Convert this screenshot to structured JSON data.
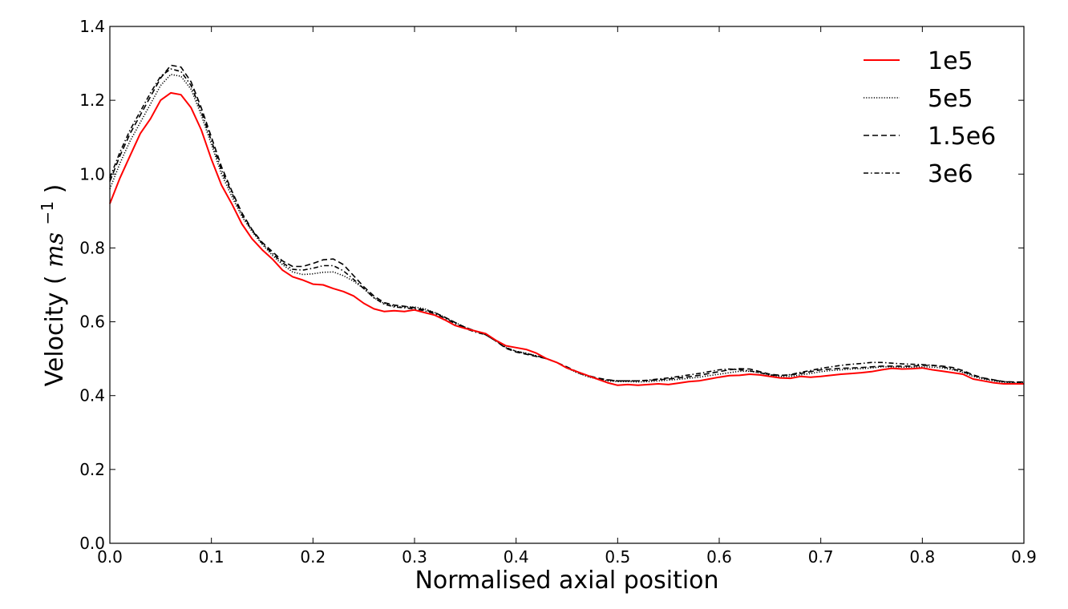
{
  "chart_data": {
    "type": "line",
    "title": "",
    "xlabel": "Normalised axial position",
    "ylabel": "Velocity",
    "ylabel_math": "ms",
    "ylabel_exp": "−1",
    "xlim": [
      0.0,
      0.9
    ],
    "ylim": [
      0.0,
      1.4
    ],
    "xticks": [
      0.0,
      0.1,
      0.2,
      0.3,
      0.4,
      0.5,
      0.6,
      0.7,
      0.8,
      0.9
    ],
    "xtick_labels": [
      "0.0",
      "0.1",
      "0.2",
      "0.3",
      "0.4",
      "0.5",
      "0.6",
      "0.7",
      "0.8",
      "0.9"
    ],
    "yticks": [
      0.0,
      0.2,
      0.4,
      0.6,
      0.8,
      1.0,
      1.2,
      1.4
    ],
    "ytick_labels": [
      "0.0",
      "0.2",
      "0.4",
      "0.6",
      "0.8",
      "1.0",
      "1.2",
      "1.4"
    ],
    "grid": false,
    "legend_position": "top-right",
    "x": [
      0.0,
      0.01,
      0.02,
      0.03,
      0.04,
      0.05,
      0.06,
      0.07,
      0.08,
      0.09,
      0.1,
      0.11,
      0.12,
      0.13,
      0.14,
      0.15,
      0.16,
      0.17,
      0.18,
      0.19,
      0.2,
      0.21,
      0.22,
      0.23,
      0.24,
      0.25,
      0.26,
      0.27,
      0.28,
      0.29,
      0.3,
      0.31,
      0.32,
      0.33,
      0.34,
      0.35,
      0.36,
      0.37,
      0.38,
      0.39,
      0.4,
      0.41,
      0.42,
      0.43,
      0.44,
      0.45,
      0.46,
      0.47,
      0.48,
      0.49,
      0.5,
      0.51,
      0.52,
      0.53,
      0.54,
      0.55,
      0.56,
      0.57,
      0.58,
      0.59,
      0.6,
      0.61,
      0.62,
      0.63,
      0.64,
      0.65,
      0.66,
      0.67,
      0.68,
      0.69,
      0.7,
      0.71,
      0.72,
      0.73,
      0.74,
      0.75,
      0.76,
      0.77,
      0.78,
      0.79,
      0.8,
      0.81,
      0.82,
      0.83,
      0.84,
      0.85,
      0.86,
      0.87,
      0.88,
      0.89,
      0.9
    ],
    "series": [
      {
        "name": "1e5",
        "color": "#ff0000",
        "dash": "solid",
        "values": [
          0.92,
          0.99,
          1.05,
          1.11,
          1.15,
          1.2,
          1.22,
          1.215,
          1.18,
          1.12,
          1.04,
          0.97,
          0.92,
          0.865,
          0.825,
          0.795,
          0.77,
          0.74,
          0.722,
          0.713,
          0.702,
          0.7,
          0.69,
          0.682,
          0.67,
          0.65,
          0.635,
          0.628,
          0.63,
          0.628,
          0.632,
          0.625,
          0.618,
          0.605,
          0.59,
          0.582,
          0.575,
          0.568,
          0.55,
          0.535,
          0.53,
          0.525,
          0.515,
          0.5,
          0.49,
          0.475,
          0.465,
          0.455,
          0.445,
          0.435,
          0.428,
          0.43,
          0.428,
          0.43,
          0.432,
          0.43,
          0.434,
          0.438,
          0.44,
          0.445,
          0.45,
          0.454,
          0.455,
          0.458,
          0.456,
          0.452,
          0.448,
          0.447,
          0.452,
          0.45,
          0.452,
          0.455,
          0.458,
          0.46,
          0.462,
          0.465,
          0.47,
          0.474,
          0.472,
          0.473,
          0.475,
          0.47,
          0.466,
          0.462,
          0.458,
          0.445,
          0.44,
          0.435,
          0.432,
          0.432,
          0.432
        ]
      },
      {
        "name": "5e5",
        "color": "#000000",
        "dash": "dotted",
        "values": [
          0.96,
          1.03,
          1.09,
          1.14,
          1.19,
          1.24,
          1.27,
          1.265,
          1.23,
          1.16,
          1.08,
          1.0,
          0.94,
          0.885,
          0.845,
          0.81,
          0.78,
          0.755,
          0.735,
          0.728,
          0.73,
          0.734,
          0.735,
          0.725,
          0.71,
          0.69,
          0.665,
          0.65,
          0.642,
          0.64,
          0.64,
          0.635,
          0.625,
          0.612,
          0.598,
          0.585,
          0.575,
          0.565,
          0.55,
          0.53,
          0.52,
          0.515,
          0.508,
          0.5,
          0.49,
          0.475,
          0.462,
          0.452,
          0.445,
          0.44,
          0.438,
          0.438,
          0.437,
          0.438,
          0.44,
          0.442,
          0.444,
          0.447,
          0.45,
          0.454,
          0.458,
          0.462,
          0.466,
          0.466,
          0.462,
          0.455,
          0.452,
          0.452,
          0.456,
          0.46,
          0.465,
          0.468,
          0.47,
          0.472,
          0.473,
          0.475,
          0.478,
          0.478,
          0.477,
          0.477,
          0.478,
          0.477,
          0.475,
          0.47,
          0.463,
          0.452,
          0.445,
          0.44,
          0.436,
          0.435,
          0.435
        ]
      },
      {
        "name": "1.5e6",
        "color": "#000000",
        "dash": "dashed",
        "values": [
          0.98,
          1.05,
          1.11,
          1.16,
          1.21,
          1.26,
          1.295,
          1.29,
          1.25,
          1.18,
          1.1,
          1.02,
          0.955,
          0.895,
          0.85,
          0.815,
          0.79,
          0.765,
          0.75,
          0.75,
          0.758,
          0.768,
          0.77,
          0.755,
          0.725,
          0.695,
          0.67,
          0.652,
          0.645,
          0.642,
          0.638,
          0.632,
          0.625,
          0.612,
          0.598,
          0.585,
          0.575,
          0.565,
          0.548,
          0.528,
          0.518,
          0.512,
          0.506,
          0.5,
          0.49,
          0.478,
          0.465,
          0.455,
          0.448,
          0.443,
          0.44,
          0.44,
          0.44,
          0.441,
          0.443,
          0.445,
          0.448,
          0.451,
          0.455,
          0.46,
          0.465,
          0.47,
          0.473,
          0.472,
          0.465,
          0.458,
          0.455,
          0.456,
          0.46,
          0.465,
          0.47,
          0.472,
          0.474,
          0.475,
          0.476,
          0.478,
          0.48,
          0.48,
          0.48,
          0.48,
          0.482,
          0.482,
          0.48,
          0.476,
          0.468,
          0.456,
          0.448,
          0.443,
          0.438,
          0.437,
          0.437
        ]
      },
      {
        "name": "3e6",
        "color": "#000000",
        "dash": "dashdot",
        "values": [
          0.99,
          1.06,
          1.12,
          1.17,
          1.22,
          1.265,
          1.285,
          1.278,
          1.24,
          1.17,
          1.09,
          1.01,
          0.95,
          0.89,
          0.848,
          0.812,
          0.785,
          0.76,
          0.742,
          0.74,
          0.745,
          0.752,
          0.752,
          0.738,
          0.715,
          0.69,
          0.665,
          0.648,
          0.64,
          0.638,
          0.635,
          0.63,
          0.622,
          0.61,
          0.595,
          0.582,
          0.572,
          0.565,
          0.548,
          0.53,
          0.52,
          0.514,
          0.508,
          0.5,
          0.49,
          0.476,
          0.463,
          0.453,
          0.446,
          0.442,
          0.44,
          0.44,
          0.44,
          0.442,
          0.445,
          0.448,
          0.452,
          0.456,
          0.46,
          0.465,
          0.47,
          0.472,
          0.47,
          0.467,
          0.462,
          0.456,
          0.454,
          0.457,
          0.463,
          0.468,
          0.474,
          0.478,
          0.482,
          0.485,
          0.487,
          0.49,
          0.49,
          0.488,
          0.486,
          0.485,
          0.484,
          0.482,
          0.478,
          0.472,
          0.465,
          0.455,
          0.447,
          0.442,
          0.438,
          0.436,
          0.436
        ]
      }
    ]
  }
}
